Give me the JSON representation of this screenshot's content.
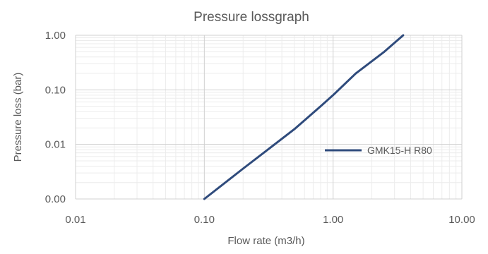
{
  "chart_data": {
    "type": "line",
    "title": "Pressure lossgraph",
    "xlabel": "Flow rate (m3/h)",
    "ylabel": "Pressure loss (bar)",
    "x_scale": "log",
    "y_scale": "log",
    "xlim": [
      0.01,
      10
    ],
    "ylim": [
      0.001,
      1
    ],
    "x_ticks": [
      {
        "value": 0.01,
        "label": "0.01"
      },
      {
        "value": 0.1,
        "label": "0.10"
      },
      {
        "value": 1,
        "label": "1.00"
      },
      {
        "value": 10,
        "label": "10.00"
      }
    ],
    "y_ticks": [
      {
        "value": 0.001,
        "label": "0.00"
      },
      {
        "value": 0.01,
        "label": "0.01"
      },
      {
        "value": 0.1,
        "label": "0.10"
      },
      {
        "value": 1,
        "label": "1.00"
      }
    ],
    "grid": true,
    "minor_grid": true,
    "legend_position": "right",
    "series": [
      {
        "name": "GMK15-H R80",
        "color": "#2f4b7c",
        "x": [
          0.1,
          0.2,
          0.3,
          0.5,
          0.8,
          1.0,
          1.5,
          2.5,
          3.5
        ],
        "y": [
          0.001,
          0.0036,
          0.0075,
          0.019,
          0.05,
          0.08,
          0.2,
          0.5,
          1.0
        ]
      }
    ]
  }
}
